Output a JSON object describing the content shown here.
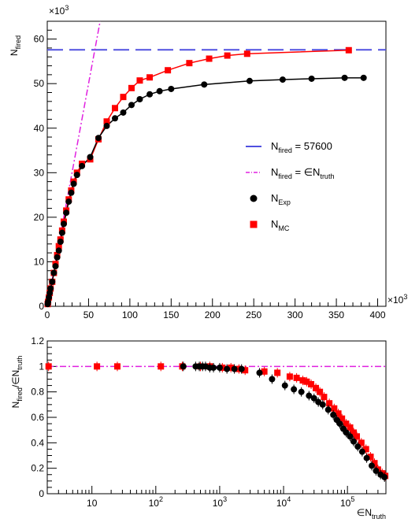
{
  "chart_data": [
    {
      "type": "line",
      "x_scale": "linear",
      "x_multiplier_label": "×10",
      "x_multiplier_exp": "3",
      "y_multiplier_label": "×10",
      "y_multiplier_exp": "3",
      "ylabel_main": "N",
      "ylabel_sub": "fired",
      "xlim": [
        0,
        410
      ],
      "ylim": [
        0,
        64
      ],
      "x_ticks": [
        0,
        50,
        100,
        150,
        200,
        250,
        300,
        350,
        400
      ],
      "y_ticks": [
        0,
        10,
        20,
        30,
        40,
        50,
        60
      ],
      "legend": [
        {
          "pre": "N",
          "sub": "fired",
          "post": " = 57600",
          "post_sub": "",
          "kind": "dashed-line",
          "color": "#5050e0"
        },
        {
          "pre": "N",
          "sub": "fired",
          "post": " = ∈N",
          "post_sub": "truth",
          "kind": "dashdot-line",
          "color": "#e020e0"
        },
        {
          "pre": "N",
          "sub": "Exp",
          "post": "",
          "post_sub": "",
          "kind": "circle",
          "color": "#000000"
        },
        {
          "pre": "N",
          "sub": "MC",
          "post": "",
          "post_sub": "",
          "kind": "square",
          "color": "#ff0000"
        }
      ],
      "hline_value": 57.6,
      "diag_slope": 1.0,
      "series": [
        {
          "marker": "circle",
          "color": "#000000",
          "x": [
            0.5,
            1,
            2,
            3,
            4,
            6,
            8,
            10,
            12,
            14,
            16,
            18,
            20,
            23,
            26,
            29,
            32,
            36,
            42,
            52,
            62,
            72,
            82,
            92,
            102,
            112,
            124,
            136,
            150,
            190,
            245,
            285,
            320,
            360,
            383
          ],
          "y": [
            0.5,
            1,
            2,
            3,
            4,
            5.5,
            7.5,
            9,
            11,
            12.5,
            14.5,
            16.5,
            18.5,
            21,
            23.5,
            25.5,
            27.5,
            29.5,
            31.5,
            33.5,
            37.8,
            40.5,
            42.2,
            43.5,
            45.2,
            46.5,
            47.6,
            48.3,
            48.8,
            49.8,
            50.6,
            50.9,
            51.1,
            51.3,
            51.3
          ]
        },
        {
          "marker": "square",
          "color": "#ff0000",
          "x": [
            0.5,
            1,
            2,
            3,
            4,
            6,
            8,
            10,
            12,
            14,
            16,
            18,
            20,
            23,
            26,
            29,
            32,
            36,
            42,
            52,
            62,
            72,
            82,
            92,
            102,
            112,
            124,
            146,
            172,
            196,
            218,
            242,
            365
          ],
          "y": [
            0.5,
            1,
            2,
            3,
            4,
            5.5,
            7.5,
            9.5,
            11.5,
            13.5,
            15,
            17,
            19,
            21.5,
            24,
            26,
            28,
            30,
            32,
            33,
            37.5,
            41.5,
            44.5,
            47,
            49,
            50.7,
            51.4,
            53,
            54.6,
            55.6,
            56.3,
            56.7,
            57.5
          ]
        }
      ]
    },
    {
      "type": "scatter",
      "x_scale": "log",
      "xlabel_main": "∈N",
      "xlabel_sub": "truth",
      "ylabel_main": "N",
      "ylabel_sub": "fired",
      "ylabel_mid": "/∈N",
      "ylabel_sub2": "truth",
      "xlim": [
        2,
        400000
      ],
      "ylim": [
        0,
        1.2
      ],
      "x_ticks": [
        {
          "value": 10,
          "label": "10",
          "sup": ""
        },
        {
          "value": 100,
          "label": "10",
          "sup": "2"
        },
        {
          "value": 1000,
          "label": "10",
          "sup": "3"
        },
        {
          "value": 10000,
          "label": "10",
          "sup": "4"
        },
        {
          "value": 100000,
          "label": "10",
          "sup": "5"
        }
      ],
      "y_ticks": [
        0,
        0.2,
        0.4,
        0.6,
        0.8,
        1,
        1.2
      ],
      "y_tick_labels": [
        "0",
        "0.2",
        "0.4",
        "0.6",
        "0.8",
        "1",
        "1.2"
      ],
      "hline_value": 1.0,
      "series": [
        {
          "marker": "circle",
          "color": "#000000",
          "x": [
            270,
            420,
            480,
            540,
            600,
            700,
            800,
            1000,
            1300,
            1700,
            2200,
            4200,
            6600,
            10500,
            14500,
            19000,
            25000,
            30000,
            35000,
            41000,
            50000,
            60000,
            68000,
            76000,
            86000,
            96000,
            110000,
            125000,
            145000,
            170000,
            200000,
            240000,
            280000,
            330000,
            380000
          ],
          "y": [
            1.0,
            1.0,
            1.0,
            1.0,
            1.0,
            0.99,
            0.99,
            0.99,
            0.98,
            0.98,
            0.98,
            0.95,
            0.9,
            0.85,
            0.82,
            0.8,
            0.77,
            0.75,
            0.72,
            0.7,
            0.66,
            0.62,
            0.58,
            0.55,
            0.51,
            0.48,
            0.45,
            0.41,
            0.37,
            0.33,
            0.28,
            0.22,
            0.18,
            0.15,
            0.13
          ]
        },
        {
          "marker": "square",
          "color": "#ff0000",
          "x": [
            2.1,
            12,
            25,
            120,
            260,
            500,
            700,
            1100,
            1500,
            2000,
            2500,
            5000,
            8000,
            12500,
            16000,
            20000,
            23000,
            27000,
            32000,
            37000,
            43000,
            52000,
            62000,
            72000,
            82000,
            95000,
            110000,
            125000,
            140000,
            165000,
            195000,
            230000,
            265000,
            300000,
            350000,
            390000
          ],
          "y": [
            1.0,
            1.0,
            1.0,
            1.0,
            1.0,
            1.0,
            1.0,
            0.99,
            0.99,
            0.98,
            0.97,
            0.96,
            0.95,
            0.92,
            0.91,
            0.89,
            0.88,
            0.86,
            0.83,
            0.8,
            0.76,
            0.71,
            0.67,
            0.63,
            0.59,
            0.55,
            0.52,
            0.48,
            0.45,
            0.4,
            0.35,
            0.29,
            0.24,
            0.19,
            0.16,
            0.14
          ]
        }
      ]
    }
  ]
}
